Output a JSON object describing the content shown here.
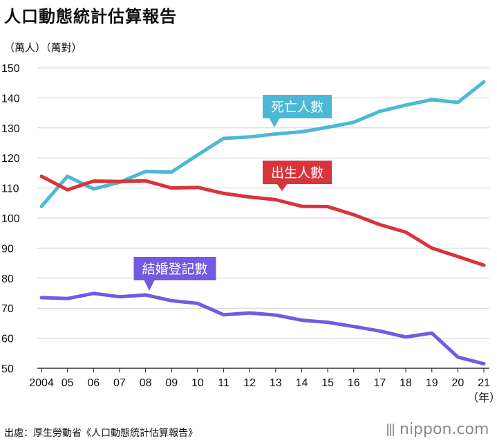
{
  "header": {
    "title": "人口動態統計估算報告",
    "unit": "（萬人）（萬對）"
  },
  "footer": {
    "source": "出處：厚生勞動省《人口動態統計估算報告》",
    "logo": "nippon.com"
  },
  "chart_data": {
    "type": "line",
    "title": "人口動態統計估算報告",
    "x_tick_labels": [
      "2004",
      "05",
      "06",
      "07",
      "08",
      "09",
      "10",
      "11",
      "12",
      "13",
      "14",
      "15",
      "16",
      "17",
      "18",
      "19",
      "20",
      "21"
    ],
    "x_unit": "（年）",
    "x": [
      2004,
      2005,
      2006,
      2007,
      2008,
      2009,
      2010,
      2011,
      2012,
      2013,
      2014,
      2015,
      2016,
      2017,
      2018,
      2019,
      2020,
      2021
    ],
    "y_ticks": [
      50,
      60,
      70,
      80,
      90,
      100,
      110,
      120,
      130,
      140,
      150
    ],
    "ylim": [
      50,
      150
    ],
    "ylabel": "（萬人）（萬對）",
    "grid": "horizontal",
    "series": [
      {
        "name": "死亡人數",
        "color": "#4bb8d6",
        "values": [
          103.9,
          113.9,
          109.7,
          111.9,
          115.5,
          115.3,
          121.0,
          126.5,
          127.0,
          128.0,
          128.7,
          130.2,
          131.9,
          135.5,
          137.6,
          139.4,
          138.5,
          145.3
        ]
      },
      {
        "name": "出生人數",
        "color": "#d8343c",
        "values": [
          113.9,
          109.4,
          112.3,
          112.2,
          112.4,
          110.0,
          110.2,
          108.2,
          107.0,
          106.1,
          103.9,
          103.8,
          101.1,
          97.8,
          95.3,
          90.0,
          87.2,
          84.3
        ]
      },
      {
        "name": "結婚登記數",
        "color": "#7359e3",
        "values": [
          73.5,
          73.2,
          74.9,
          73.8,
          74.4,
          72.5,
          71.6,
          67.8,
          68.4,
          67.7,
          66.0,
          65.3,
          63.9,
          62.4,
          60.4,
          61.7,
          53.7,
          51.5
        ]
      }
    ]
  }
}
